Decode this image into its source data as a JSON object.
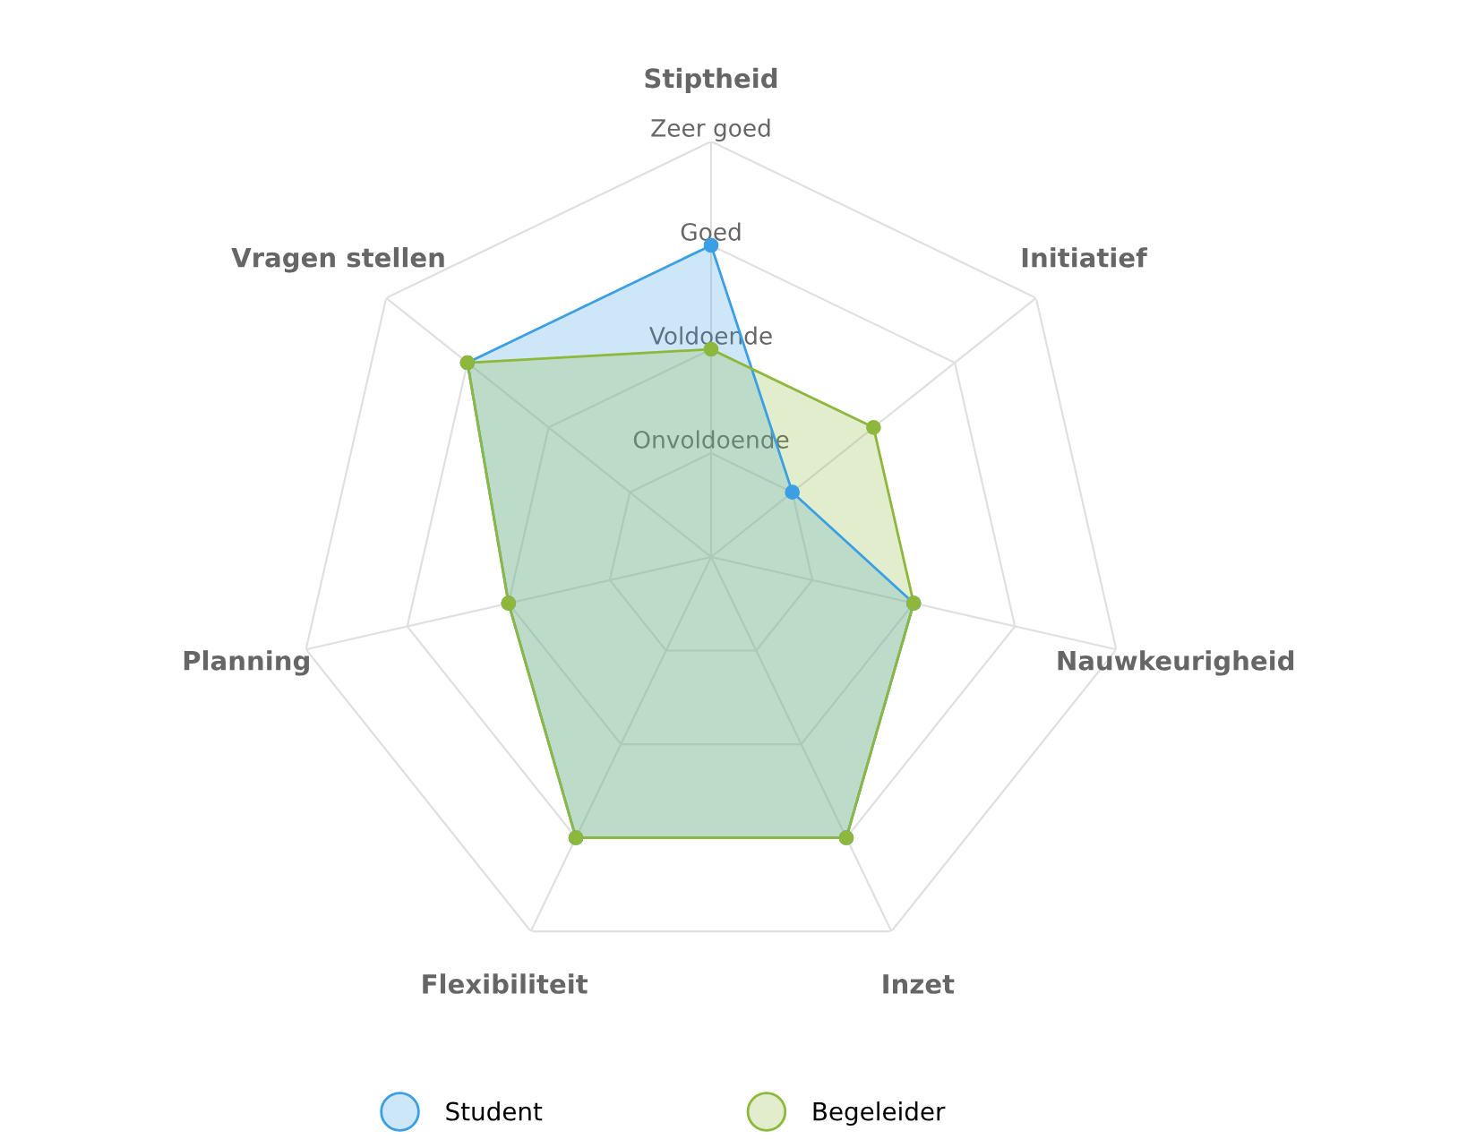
{
  "chart_data": {
    "type": "radar",
    "categories": [
      "Stiptheid",
      "Initiatief",
      "Nauwkeurigheid",
      "Inzet",
      "Flexibiliteit",
      "Planning",
      "Vragen stellen"
    ],
    "ylim": [
      0,
      4
    ],
    "yticks": [
      {
        "value": 1,
        "label": "Onvoldoende"
      },
      {
        "value": 2,
        "label": "Voldoende"
      },
      {
        "value": 3,
        "label": "Goed"
      },
      {
        "value": 4,
        "label": "Zeer goed"
      }
    ],
    "grid": true,
    "legend": "bottom",
    "marker": "circle",
    "series": [
      {
        "name": "Student",
        "color": "#3a9fe4",
        "values": [
          3,
          1,
          2,
          3,
          3,
          2,
          3
        ]
      },
      {
        "name": "Begeleider",
        "color": "#8db83c",
        "values": [
          2,
          2,
          2,
          3,
          3,
          2,
          3
        ]
      }
    ]
  }
}
